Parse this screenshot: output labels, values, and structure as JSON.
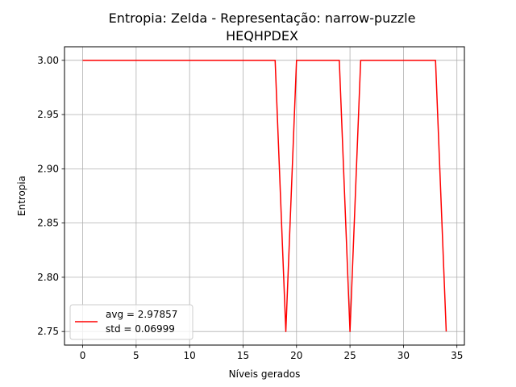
{
  "chart_data": {
    "type": "line",
    "title_lines": [
      "Entropia: Zelda - Representação: narrow-puzzle",
      "HEQHPDEX"
    ],
    "xlabel": "Níveis gerados",
    "ylabel": "Entropia",
    "xlim": [
      -1.7,
      35.7
    ],
    "ylim": [
      2.7375,
      3.0125
    ],
    "xticks": [
      0,
      5,
      10,
      15,
      20,
      25,
      30,
      35
    ],
    "yticks": [
      2.75,
      2.8,
      2.85,
      2.9,
      2.95,
      3.0
    ],
    "ytick_labels": [
      "2.75",
      "2.80",
      "2.85",
      "2.90",
      "2.95",
      "3.00"
    ],
    "grid": true,
    "legend_position": "lower-left",
    "series": [
      {
        "color": "#ff0000",
        "x": [
          0,
          1,
          2,
          3,
          4,
          5,
          6,
          7,
          8,
          9,
          10,
          11,
          12,
          13,
          14,
          15,
          16,
          17,
          18,
          19,
          20,
          21,
          22,
          23,
          24,
          25,
          26,
          27,
          28,
          29,
          30,
          31,
          32,
          33,
          34
        ],
        "y": [
          3.0,
          3.0,
          3.0,
          3.0,
          3.0,
          3.0,
          3.0,
          3.0,
          3.0,
          3.0,
          3.0,
          3.0,
          3.0,
          3.0,
          3.0,
          3.0,
          3.0,
          3.0,
          3.0,
          2.75,
          3.0,
          3.0,
          3.0,
          3.0,
          3.0,
          2.75,
          3.0,
          3.0,
          3.0,
          3.0,
          3.0,
          3.0,
          3.0,
          3.0,
          2.75
        ]
      }
    ],
    "legend_lines": [
      "avg = 2.97857",
      "std = 0.06999"
    ]
  }
}
